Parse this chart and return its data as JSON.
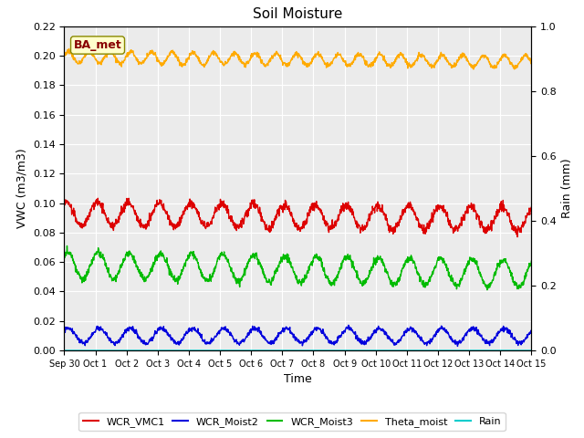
{
  "title": "Soil Moisture",
  "ylabel_left": "VWC (m3/m3)",
  "ylabel_right": "Rain (mm)",
  "xlabel": "Time",
  "annotation_text": "BA_met",
  "ylim_left": [
    0.0,
    0.22
  ],
  "ylim_right": [
    0.0,
    1.0
  ],
  "yticks_left": [
    0.0,
    0.02,
    0.04,
    0.06,
    0.08,
    0.1,
    0.12,
    0.14,
    0.16,
    0.18,
    0.2,
    0.22
  ],
  "yticks_right": [
    0.0,
    0.2,
    0.4,
    0.6,
    0.8,
    1.0
  ],
  "xtick_labels": [
    "Sep 30",
    "Oct 1",
    "Oct 2",
    "Oct 3",
    "Oct 4",
    "Oct 5",
    "Oct 6",
    "Oct 7",
    "Oct 8",
    "Oct 9",
    "Oct 10",
    "Oct 11",
    "Oct 12",
    "Oct 13",
    "Oct 14",
    "Oct 15"
  ],
  "colors": {
    "WCR_VMC1": "#dd0000",
    "WCR_Moist2": "#0000dd",
    "WCR_Moist3": "#00bb00",
    "Theta_moist": "#ffaa00",
    "Rain": "#00cccc"
  },
  "plot_bg": "#ebebeb",
  "fig_bg": "#ffffff",
  "grid_color": "#ffffff",
  "n_points": 1500,
  "days": 15,
  "WCR_VMC1_base": 0.093,
  "WCR_VMC1_amp": 0.008,
  "WCR_VMC1_drift": -0.004,
  "WCR_VMC1_freq": 1.0,
  "WCR_Moist2_base": 0.01,
  "WCR_Moist2_amp": 0.005,
  "WCR_Moist2_drift": 0.0,
  "WCR_Moist2_freq": 1.0,
  "WCR_Moist3_base": 0.058,
  "WCR_Moist3_amp": 0.009,
  "WCR_Moist3_drift": -0.006,
  "WCR_Moist3_freq": 1.0,
  "Theta_moist_base": 0.199,
  "Theta_moist_amp": 0.004,
  "Theta_moist_drift": -0.003,
  "Theta_moist_freq": 1.5,
  "linewidth": 1.0
}
